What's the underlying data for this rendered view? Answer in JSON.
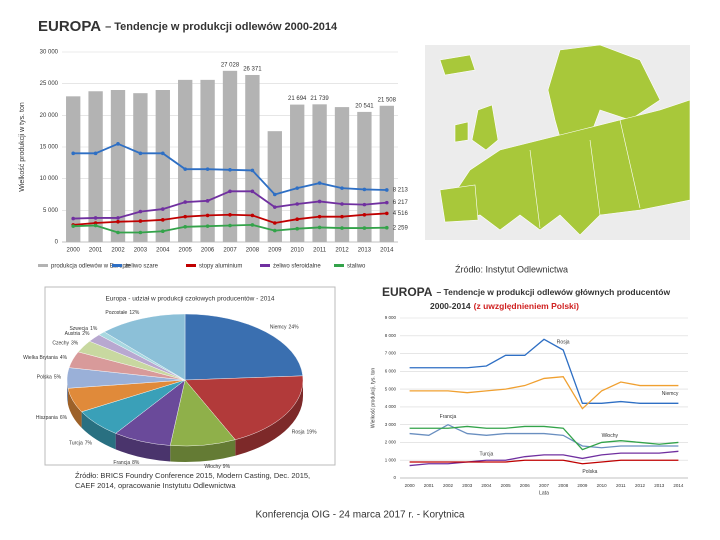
{
  "chart_data": [
    {
      "type": "combo",
      "title": "EUROPA",
      "subtitle": "– Tendencje w produkcji odlewów 2000-2014",
      "y_label": "Wielkość produkcji w tys. ton",
      "categories": [
        "2000",
        "2001",
        "2002",
        "2003",
        "2004",
        "2005",
        "2006",
        "2007",
        "2008",
        "2009",
        "2010",
        "2011",
        "2012",
        "2013",
        "2014"
      ],
      "ylim": [
        0,
        30000
      ],
      "yticks": [
        0,
        {
          "value": 5000,
          "label": "5 000"
        },
        {
          "value": 10000,
          "label": "10 000"
        },
        {
          "value": 15000,
          "label": "15 000"
        },
        {
          "value": 20000,
          "label": "20 000"
        },
        {
          "value": 25000,
          "label": "25 000"
        },
        {
          "value": 30000,
          "label": "30 000"
        }
      ],
      "grid": true,
      "series": [
        {
          "name": "produkcja odlewów w Europie",
          "type": "bar",
          "color": "#b3b3b3",
          "values": [
            23000,
            23800,
            24000,
            23500,
            24000,
            25600,
            25600,
            27028,
            26371,
            17500,
            21694,
            21739,
            21300,
            20541,
            21508
          ],
          "value_labels": [
            null,
            null,
            null,
            null,
            null,
            null,
            null,
            "27 028",
            "26 371",
            null,
            "21 694",
            "21 739",
            null,
            "20 541",
            "21 508"
          ]
        },
        {
          "name": "żeliwo szare",
          "type": "line",
          "color": "#2e6fc4",
          "values": [
            14000,
            14000,
            15500,
            14000,
            14000,
            11500,
            11500,
            11400,
            11300,
            7500,
            8500,
            9300,
            8500,
            8300,
            8213
          ],
          "value_labels": [
            null,
            null,
            null,
            null,
            null,
            null,
            null,
            null,
            null,
            null,
            null,
            null,
            null,
            null,
            "8 213"
          ]
        },
        {
          "name": "stopy aluminium",
          "type": "line",
          "color": "#c00000",
          "values": [
            2700,
            3000,
            3200,
            3300,
            3500,
            4000,
            4200,
            4300,
            4200,
            3000,
            3600,
            4000,
            4000,
            4300,
            4516
          ],
          "value_labels": [
            null,
            null,
            null,
            null,
            null,
            null,
            null,
            null,
            null,
            null,
            null,
            null,
            null,
            null,
            "4 516"
          ]
        },
        {
          "name": "żeliwo sferoidalne",
          "type": "line",
          "color": "#7030a0",
          "values": [
            3700,
            3800,
            3800,
            4800,
            5200,
            6300,
            6500,
            8000,
            8000,
            5500,
            6000,
            6400,
            6000,
            5900,
            6217
          ],
          "value_labels": [
            null,
            null,
            null,
            null,
            null,
            null,
            null,
            null,
            null,
            null,
            null,
            null,
            null,
            null,
            "6 217"
          ]
        },
        {
          "name": "staliwo",
          "type": "line",
          "color": "#33a34a",
          "values": [
            2500,
            2600,
            1500,
            1500,
            1700,
            2400,
            2500,
            2600,
            2700,
            1800,
            2100,
            2300,
            2200,
            2200,
            2259
          ],
          "value_labels": [
            null,
            null,
            null,
            null,
            null,
            null,
            null,
            null,
            null,
            null,
            null,
            null,
            null,
            null,
            "2 259"
          ]
        }
      ]
    },
    {
      "type": "pie",
      "title": "Europa - udział w produkcji czołowych producentów - 2014",
      "categories": [
        "Niemcy",
        "Rosja",
        "Włochy",
        "Francja",
        "Turcja",
        "Hiszpania",
        "Polska",
        "Wielka Brytania",
        "Czechy",
        "Austria",
        "Szwecja",
        "Pozostałe"
      ],
      "values": [
        24,
        19,
        9,
        8,
        7,
        6,
        5,
        4,
        3,
        2,
        1,
        12
      ],
      "value_labels": [
        "24%",
        "19%",
        "9%",
        "8%",
        "7%",
        "6%",
        "5%",
        "4%",
        "3%",
        "2%",
        "1%",
        "12%"
      ],
      "colors": [
        "#3a6fb0",
        "#b23a3a",
        "#8fb04a",
        "#6a4a9a",
        "#3aa0b8",
        "#e08a3a",
        "#9ab0d8",
        "#d89a9a",
        "#c8d8a0",
        "#b8a8d0",
        "#a8d8e0",
        "#8cc0d8"
      ],
      "source": [
        "Źródło: BRICS Foundry Conference 2015, Modern Casting, Dec. 2015,",
        "CAEF 2014, opracowanie Instytutu Odlewnictwa"
      ]
    },
    {
      "type": "line",
      "title": "EUROPA",
      "subtitle": "– Tendencje w produkcji odlewów głównych producentów",
      "subtitle2": "2000-2014",
      "note": "(z uwzględnieniem Polski)",
      "y_label": "Wielkość produkcji, tys. ton",
      "x_label": "Lata",
      "categories": [
        "2000",
        "2001",
        "2002",
        "2003",
        "2004",
        "2005",
        "2006",
        "2007",
        "2008",
        "2009",
        "2010",
        "2011",
        "2012",
        "2013",
        "2014"
      ],
      "ylim": [
        0,
        9000
      ],
      "yticks": [
        0,
        {
          "value": 1000,
          "label": "1 000"
        },
        {
          "value": 2000,
          "label": "2 000"
        },
        {
          "value": 3000,
          "label": "3 000"
        },
        {
          "value": 4000,
          "label": "4 000"
        },
        {
          "value": 5000,
          "label": "5 000"
        },
        {
          "value": 6000,
          "label": "6 000"
        },
        {
          "value": 7000,
          "label": "7 000"
        },
        {
          "value": 8000,
          "label": "8 000"
        },
        {
          "value": 9000,
          "label": "9 000"
        }
      ],
      "grid": true,
      "series": [
        {
          "name": "Rosja",
          "color": "#2e6fc4",
          "values": [
            6200,
            6200,
            6200,
            6200,
            6300,
            6900,
            6900,
            7800,
            7200,
            4200,
            4200,
            4300,
            4200,
            4200,
            4200
          ]
        },
        {
          "name": "Niemcy",
          "color": "#f0a030",
          "values": [
            4900,
            4900,
            4900,
            4800,
            4900,
            5000,
            5200,
            5600,
            5700,
            3900,
            4900,
            5400,
            5200,
            5200,
            5200
          ]
        },
        {
          "name": "Francja",
          "color": "#6a8fc0",
          "values": [
            2500,
            2400,
            3000,
            2500,
            2400,
            2500,
            2500,
            2500,
            2400,
            1800,
            1700,
            1800,
            1800,
            1800,
            1800
          ]
        },
        {
          "name": "Włochy",
          "color": "#33a34a",
          "values": [
            2800,
            2800,
            2800,
            2900,
            2800,
            2800,
            2900,
            2900,
            2800,
            1600,
            2000,
            2100,
            2000,
            1900,
            2000
          ]
        },
        {
          "name": "Turcja",
          "color": "#7030a0",
          "values": [
            700,
            800,
            800,
            900,
            1000,
            1000,
            1200,
            1300,
            1300,
            1100,
            1300,
            1400,
            1400,
            1400,
            1500
          ]
        },
        {
          "name": "Polska",
          "color": "#c00000",
          "values": [
            900,
            900,
            900,
            900,
            900,
            900,
            1000,
            1000,
            1000,
            800,
            900,
            1000,
            1000,
            1000,
            1000
          ]
        }
      ]
    }
  ],
  "map": {
    "source": "Źródło: Instytut Odlewnictwa"
  },
  "footer": "Konferencja OIG - 24 marca 2017 r.  - Korytnica"
}
